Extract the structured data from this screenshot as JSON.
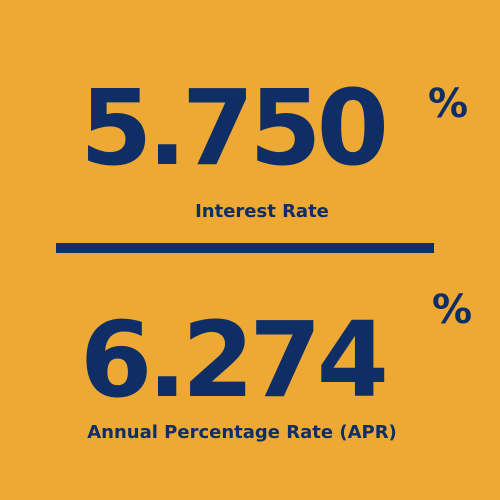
{
  "interest": {
    "value": "5.750",
    "unit": "%",
    "label": "Interest Rate"
  },
  "apr": {
    "value": "6.274",
    "unit": "%",
    "label": "Annual Percentage Rate (APR)"
  },
  "colors": {
    "background": "#EDA934",
    "text": "#0F2E66"
  }
}
